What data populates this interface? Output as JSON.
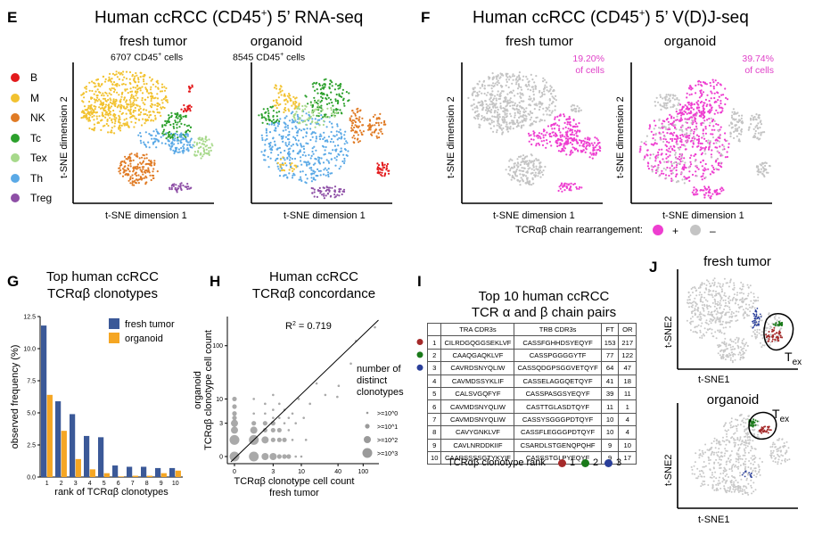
{
  "panel_E": {
    "letter": "E",
    "title_main": "Human ccRCC (CD45",
    "title_sup": "+",
    "title_end": ") 5’ RNA-seq",
    "left": {
      "title": "fresh tumor",
      "count": "6707 CD45",
      "count_sup": "+",
      "count_end": " cells"
    },
    "right": {
      "title": "organoid",
      "count": "8545 CD45",
      "count_sup": "+",
      "count_end": " cells"
    },
    "xlabel": "t-SNE dimension 1",
    "ylabel": "t-SNE dimension 2",
    "legend": [
      {
        "label": "B",
        "color": "#e31a1c"
      },
      {
        "label": "M",
        "color": "#f2c230"
      },
      {
        "label": "NK",
        "color": "#e07b25"
      },
      {
        "label": "Tc",
        "color": "#2ca02c"
      },
      {
        "label": "Tex",
        "color": "#a7d98b"
      },
      {
        "label": "Th",
        "color": "#5aa9e6"
      },
      {
        "label": "Treg",
        "color": "#8e4fa6"
      }
    ]
  },
  "panel_F": {
    "letter": "F",
    "title_main": "Human ccRCC (CD45",
    "title_sup": "+",
    "title_end": ") 5’ V(D)J-seq",
    "left": {
      "title": "fresh tumor",
      "pct": "19.20%",
      "pct_label": "of cells"
    },
    "right": {
      "title": "organoid",
      "pct": "39.74%",
      "pct_label": "of cells"
    },
    "xlabel": "t-SNE dimension 1",
    "ylabel": "t-SNE dimension 2",
    "legend_text": "TCRαβ chain rearrangement:",
    "legend_plus": "+",
    "legend_minus": "–",
    "plus_color": "#ee3ed0",
    "minus_color": "#c4c4c4"
  },
  "panel_G": {
    "letter": "G",
    "title_line1": "Top human ccRCC",
    "title_line2": "TCRαβ clonotypes"
  },
  "panel_H": {
    "letter": "H",
    "title_line1": "Human ccRCC",
    "title_line2": "TCRαβ concordance",
    "r2_label": "R",
    "r2_sup": "2",
    "r2_value": " = 0.719",
    "legend_title": [
      "number of",
      "distinct",
      "clonotypes"
    ],
    "legend_items": [
      ">=10^0",
      ">=10^1",
      ">=10^2",
      ">=10^3"
    ]
  },
  "panel_I": {
    "letter": "I",
    "title_line1": "Top 10 human ccRCC",
    "title_line2": "TCR α and β chain pairs",
    "headers": [
      "",
      "TRA CDR3s",
      "TRB CDR3s",
      "FT",
      "OR"
    ],
    "rows": [
      [
        "1",
        "CILRDGQGGSEKLVF",
        "CASSFGHHDSYEQYF",
        "153",
        "217"
      ],
      [
        "2",
        "CAAQGAQKLVF",
        "CASSPGGGGYTF",
        "77",
        "122"
      ],
      [
        "3",
        "CAVRDSNYQLIW",
        "CASSQDGPSGGVETQYF",
        "64",
        "47"
      ],
      [
        "4",
        "CAVMDSSYKLIF",
        "CASSELAGGQETQYF",
        "41",
        "18"
      ],
      [
        "5",
        "CALSVGQFYF",
        "CASSPASGSYEQYF",
        "39",
        "11"
      ],
      [
        "6",
        "CAVMDSNYQLIW",
        "CASTTGLASDTQYF",
        "11",
        "1"
      ],
      [
        "7",
        "CAVMDSNYQLIW",
        "CASSYSGGGPDTQYF",
        "10",
        "4"
      ],
      [
        "8",
        "CAVYGNKLVF",
        "CASSFLEGGGPDTQYF",
        "10",
        "4"
      ],
      [
        "9",
        "CAVLNRDDKIIF",
        "CSARDLSTGENQPQHF",
        "9",
        "10"
      ],
      [
        "10",
        "CAARSSSSGTYKYIF",
        "CASSSTGLPYEQYF",
        "9",
        "17"
      ]
    ],
    "rank_label": "TCRαβ clonotype rank",
    "ranks": [
      {
        "n": "1",
        "color": "#a52a2a"
      },
      {
        "n": "2",
        "color": "#1a7a1a"
      },
      {
        "n": "3",
        "color": "#2a3f9a"
      }
    ]
  },
  "panel_J": {
    "letter": "J",
    "top_title": "fresh tumor",
    "bottom_title": "organoid",
    "tex_label": "T",
    "tex_sub": "ex",
    "xlabel": "t-SNE1",
    "ylabel": "t-SNE2"
  },
  "chart_data": [
    {
      "type": "bar",
      "title": "Top human ccRCC TCRαβ clonotypes",
      "xlabel": "rank of TCRαβ clonotypes",
      "ylabel": "observed frequency (%)",
      "categories": [
        "1",
        "2",
        "3",
        "4",
        "5",
        "6",
        "7",
        "8",
        "9",
        "10"
      ],
      "yticks": [
        "0.0",
        "2.5",
        "5.0",
        "7.5",
        "10.0",
        "12.5"
      ],
      "ylim": [
        0,
        12.5
      ],
      "series": [
        {
          "name": "fresh tumor",
          "color": "#3b5998",
          "values": [
            11.8,
            5.9,
            4.9,
            3.2,
            3.1,
            0.9,
            0.8,
            0.8,
            0.7,
            0.7
          ]
        },
        {
          "name": "organoid",
          "color": "#f5a623",
          "values": [
            6.4,
            3.6,
            1.4,
            0.6,
            0.3,
            0.05,
            0.1,
            0.1,
            0.3,
            0.5
          ]
        }
      ]
    },
    {
      "type": "scatter",
      "title": "Human ccRCC TCRαβ concordance",
      "xlabel": "TCRαβ clonotype cell count",
      "xlabel2": "fresh tumor",
      "ylabel": "TCRαβ clonotype cell count",
      "ylabel2": "organoid",
      "xticks": [
        "0",
        "3",
        "10",
        "40",
        "100"
      ],
      "yticks": [
        "0",
        "3",
        "10",
        "100"
      ],
      "r2": 0.719,
      "points": [
        {
          "x": 0,
          "y": 0,
          "s": 3
        },
        {
          "x": 0,
          "y": 1,
          "s": 3
        },
        {
          "x": 0,
          "y": 2,
          "s": 2
        },
        {
          "x": 0,
          "y": 3,
          "s": 2
        },
        {
          "x": 0,
          "y": 4,
          "s": 1
        },
        {
          "x": 0,
          "y": 5,
          "s": 1
        },
        {
          "x": 0,
          "y": 7,
          "s": 1
        },
        {
          "x": 0,
          "y": 10,
          "s": 1
        },
        {
          "x": 1,
          "y": 0,
          "s": 3
        },
        {
          "x": 1,
          "y": 1,
          "s": 3
        },
        {
          "x": 1,
          "y": 2,
          "s": 2
        },
        {
          "x": 1,
          "y": 3,
          "s": 1
        },
        {
          "x": 1,
          "y": 5,
          "s": 0
        },
        {
          "x": 1,
          "y": 10,
          "s": 0
        },
        {
          "x": 2,
          "y": 0,
          "s": 2
        },
        {
          "x": 2,
          "y": 1,
          "s": 2
        },
        {
          "x": 2,
          "y": 2,
          "s": 1
        },
        {
          "x": 2,
          "y": 3,
          "s": 1
        },
        {
          "x": 2,
          "y": 5,
          "s": 0
        },
        {
          "x": 2,
          "y": 8,
          "s": 0
        },
        {
          "x": 3,
          "y": 0,
          "s": 2
        },
        {
          "x": 3,
          "y": 1,
          "s": 1
        },
        {
          "x": 3,
          "y": 2,
          "s": 1
        },
        {
          "x": 3,
          "y": 3,
          "s": 1
        },
        {
          "x": 3,
          "y": 4,
          "s": 0
        },
        {
          "x": 3,
          "y": 6,
          "s": 0
        },
        {
          "x": 3,
          "y": 12,
          "s": 0
        },
        {
          "x": 4,
          "y": 0,
          "s": 1
        },
        {
          "x": 4,
          "y": 1,
          "s": 1
        },
        {
          "x": 4,
          "y": 2,
          "s": 1
        },
        {
          "x": 4,
          "y": 4,
          "s": 0
        },
        {
          "x": 4,
          "y": 8,
          "s": 0
        },
        {
          "x": 5,
          "y": 0,
          "s": 1
        },
        {
          "x": 5,
          "y": 1,
          "s": 1
        },
        {
          "x": 5,
          "y": 3,
          "s": 0
        },
        {
          "x": 5,
          "y": 6,
          "s": 0
        },
        {
          "x": 6,
          "y": 0,
          "s": 1
        },
        {
          "x": 6,
          "y": 2,
          "s": 0
        },
        {
          "x": 6,
          "y": 4,
          "s": 0
        },
        {
          "x": 7,
          "y": 1,
          "s": 0
        },
        {
          "x": 7,
          "y": 5,
          "s": 0
        },
        {
          "x": 8,
          "y": 0,
          "s": 0
        },
        {
          "x": 8,
          "y": 3,
          "s": 0
        },
        {
          "x": 9,
          "y": 10,
          "s": 0
        },
        {
          "x": 10,
          "y": 0,
          "s": 0
        },
        {
          "x": 11,
          "y": 4,
          "s": 0
        },
        {
          "x": 12,
          "y": 1,
          "s": 0
        },
        {
          "x": 14,
          "y": 8,
          "s": 0
        },
        {
          "x": 18,
          "y": 20,
          "s": 0
        },
        {
          "x": 25,
          "y": 12,
          "s": 0
        },
        {
          "x": 39,
          "y": 11,
          "s": 0
        },
        {
          "x": 41,
          "y": 18,
          "s": 0
        },
        {
          "x": 64,
          "y": 47,
          "s": 0
        },
        {
          "x": 77,
          "y": 122,
          "s": 0
        },
        {
          "x": 153,
          "y": 217,
          "s": 0
        }
      ]
    }
  ]
}
